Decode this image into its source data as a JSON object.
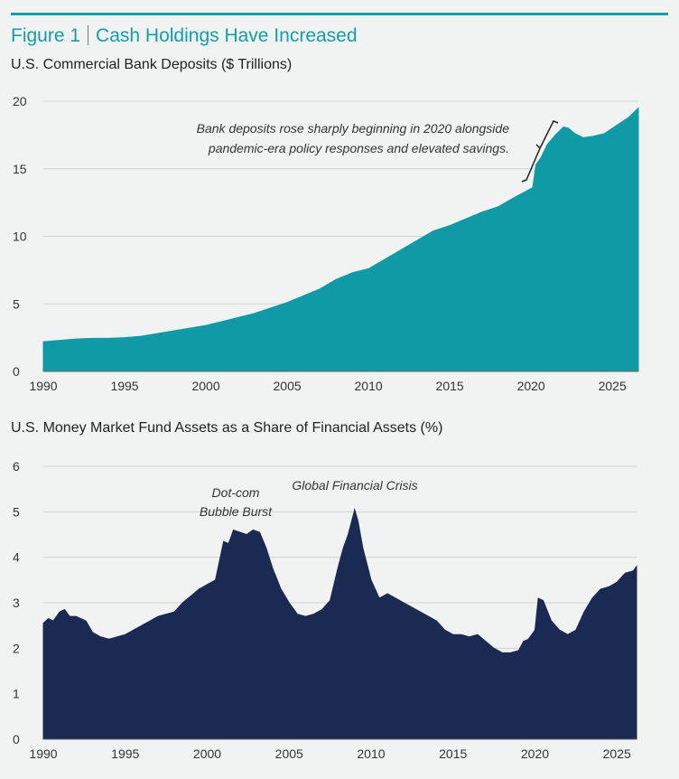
{
  "figure": {
    "label": "Figure 1",
    "title": "Cash Holdings Have Increased"
  },
  "colors": {
    "accent": "#149ea8",
    "deposits_fill": "#0f9aa6",
    "mmf_fill": "#1b2a52",
    "grid": "#d0d2d4"
  },
  "chart_data": [
    {
      "type": "area",
      "title": "U.S. Commercial Bank Deposits ($ Trillions)",
      "xlabel": "",
      "ylabel": "",
      "xlim": [
        1990,
        2026.6
      ],
      "ylim": [
        0,
        20
      ],
      "xticks": [
        1990,
        1995,
        2000,
        2005,
        2010,
        2015,
        2020,
        2025
      ],
      "yticks": [
        0,
        5,
        10,
        15,
        20
      ],
      "grid": true,
      "legend": "none",
      "x": [
        1990,
        1991,
        1992,
        1993,
        1994,
        1995,
        1996,
        1997,
        1998,
        1999,
        2000,
        2001,
        2002,
        2003,
        2004,
        2005,
        2006,
        2007,
        2008,
        2009,
        2010,
        2011,
        2012,
        2013,
        2014,
        2015,
        2016,
        2017,
        2018,
        2019,
        2020.1,
        2020.3,
        2020.6,
        2021,
        2021.5,
        2022,
        2022.3,
        2022.7,
        2023.2,
        2023.8,
        2024.5,
        2025,
        2025.5,
        2026,
        2026.6
      ],
      "values": [
        2.2,
        2.3,
        2.4,
        2.45,
        2.45,
        2.5,
        2.6,
        2.8,
        3.0,
        3.2,
        3.4,
        3.7,
        4.0,
        4.3,
        4.7,
        5.1,
        5.6,
        6.1,
        6.8,
        7.3,
        7.6,
        8.3,
        9.0,
        9.7,
        10.4,
        10.8,
        11.3,
        11.8,
        12.2,
        12.9,
        13.6,
        15.3,
        15.8,
        16.8,
        17.5,
        18.1,
        18.0,
        17.6,
        17.3,
        17.4,
        17.6,
        18.0,
        18.4,
        18.8,
        19.5
      ],
      "annotations": [
        {
          "text_lines": [
            "Bank deposits rose sharply beginning in 2020 alongside",
            "pandemic-era policy responses and elevated savings."
          ]
        }
      ]
    },
    {
      "type": "area",
      "title": "U.S. Money Market Fund Assets as a Share of Financial Assets (%)",
      "xlabel": "",
      "ylabel": "",
      "xlim": [
        1990,
        2026.2
      ],
      "ylim": [
        0,
        6
      ],
      "xticks": [
        1990,
        1995,
        2000,
        2005,
        2010,
        2015,
        2020,
        2025
      ],
      "yticks": [
        0,
        1,
        2,
        3,
        4,
        5,
        6
      ],
      "grid": true,
      "legend": "none",
      "x": [
        1990,
        1990.3,
        1990.6,
        1991,
        1991.3,
        1991.6,
        1992,
        1992.3,
        1992.6,
        1993,
        1993.5,
        1994,
        1994.5,
        1995,
        1995.5,
        1996,
        1996.5,
        1997,
        1997.5,
        1998,
        1998.5,
        1999,
        1999.5,
        2000,
        2000.5,
        2001,
        2001.3,
        2001.6,
        2002,
        2002.4,
        2002.8,
        2003.2,
        2003.6,
        2004,
        2004.5,
        2005,
        2005.5,
        2006,
        2006.5,
        2007,
        2007.5,
        2008,
        2008.3,
        2008.6,
        2009,
        2009.2,
        2009.5,
        2010,
        2010.5,
        2011,
        2011.5,
        2012,
        2012.5,
        2013,
        2013.5,
        2014,
        2014.5,
        2015,
        2015.5,
        2016,
        2016.5,
        2017,
        2017.5,
        2018,
        2018.5,
        2019,
        2019.3,
        2019.6,
        2020,
        2020.2,
        2020.5,
        2021,
        2021.5,
        2022,
        2022.5,
        2023,
        2023.5,
        2024,
        2024.5,
        2025,
        2025.5,
        2026,
        2026.2
      ],
      "values": [
        2.55,
        2.65,
        2.6,
        2.8,
        2.85,
        2.7,
        2.7,
        2.65,
        2.6,
        2.35,
        2.25,
        2.2,
        2.25,
        2.3,
        2.4,
        2.5,
        2.6,
        2.7,
        2.75,
        2.8,
        3.0,
        3.15,
        3.3,
        3.4,
        3.5,
        4.35,
        4.3,
        4.6,
        4.55,
        4.5,
        4.6,
        4.55,
        4.2,
        3.75,
        3.3,
        3.0,
        2.75,
        2.7,
        2.75,
        2.85,
        3.05,
        3.8,
        4.2,
        4.5,
        5.05,
        4.8,
        4.2,
        3.5,
        3.1,
        3.2,
        3.1,
        3.0,
        2.9,
        2.8,
        2.7,
        2.6,
        2.4,
        2.3,
        2.3,
        2.25,
        2.3,
        2.15,
        2.0,
        1.9,
        1.9,
        1.95,
        2.15,
        2.2,
        2.4,
        3.1,
        3.05,
        2.6,
        2.4,
        2.3,
        2.4,
        2.8,
        3.1,
        3.3,
        3.35,
        3.45,
        3.65,
        3.7,
        3.8
      ],
      "annotations": [
        {
          "text_lines": [
            "Dot-com",
            "Bubble Burst"
          ]
        },
        {
          "text_lines": [
            "Global Financial Crisis"
          ]
        }
      ]
    }
  ]
}
